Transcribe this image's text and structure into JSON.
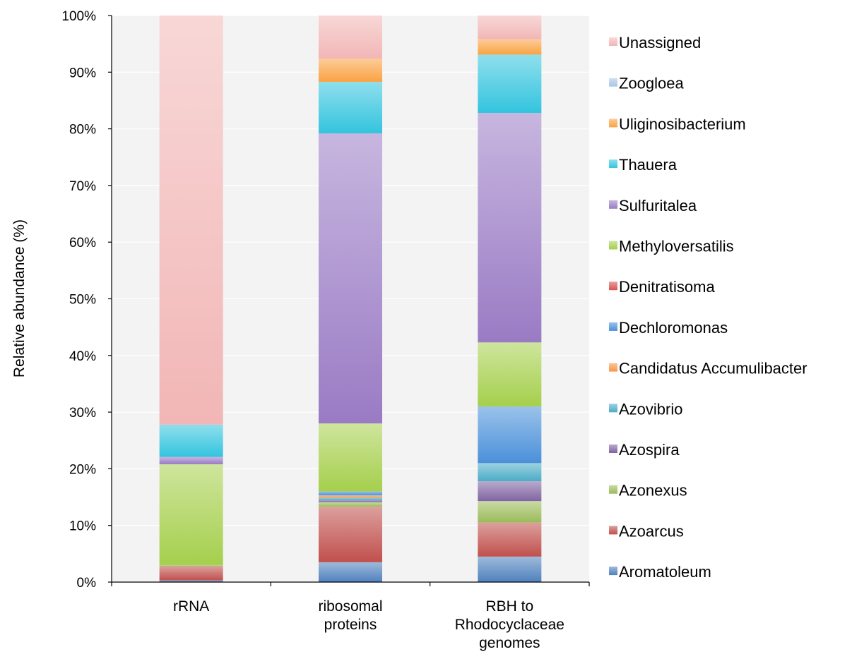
{
  "chart_data": {
    "type": "bar",
    "stacked": true,
    "title": "",
    "xlabel": "",
    "ylabel": "Relative abundance (%)",
    "ylim": [
      0,
      100
    ],
    "yticks": [
      "0%",
      "10%",
      "20%",
      "30%",
      "40%",
      "50%",
      "60%",
      "70%",
      "80%",
      "90%",
      "100%"
    ],
    "grid": true,
    "legend_position": "right",
    "categories": [
      [
        "rRNA"
      ],
      [
        "ribosomal",
        "proteins"
      ],
      [
        "RBH to",
        "Rhodocyclaceae",
        "genomes"
      ]
    ],
    "series": [
      {
        "name": "Aromatoleum",
        "color": "#4f81bd",
        "values": [
          0.3,
          3.5,
          4.5
        ]
      },
      {
        "name": "Azoarcus",
        "color": "#c0504d",
        "values": [
          2.5,
          9.8,
          6.0
        ]
      },
      {
        "name": "Azonexus",
        "color": "#9bbb59",
        "values": [
          0.2,
          0.8,
          3.8
        ]
      },
      {
        "name": "Azospira",
        "color": "#8064a2",
        "values": [
          0.0,
          0.4,
          3.5
        ]
      },
      {
        "name": "Azovibrio",
        "color": "#4bacc6",
        "values": [
          0.0,
          0.4,
          3.2
        ]
      },
      {
        "name": "Candidatus Accumulibacter",
        "color": "#f79646",
        "values": [
          0.0,
          0.4,
          0.0
        ]
      },
      {
        "name": "Dechloromonas",
        "color": "#4a90d9",
        "values": [
          0.0,
          0.7,
          10.0
        ]
      },
      {
        "name": "Denitratisoma",
        "color": "#d9534f",
        "values": [
          0.0,
          0.0,
          0.0
        ]
      },
      {
        "name": "Methyloversatilis",
        "color": "#a5cf4c",
        "values": [
          17.8,
          12.0,
          11.3
        ]
      },
      {
        "name": "Sulfuritalea",
        "color": "#9a7bc4",
        "values": [
          1.3,
          51.2,
          40.5
        ]
      },
      {
        "name": "Thauera",
        "color": "#33c4de",
        "values": [
          5.7,
          9.1,
          10.3
        ]
      },
      {
        "name": "Uliginosibacterium",
        "color": "#f9a343",
        "values": [
          0.0,
          4.1,
          2.7
        ]
      },
      {
        "name": "Zoogloea",
        "color": "#a7c7e7",
        "values": [
          0.0,
          0.0,
          0.0
        ]
      },
      {
        "name": "Unassigned",
        "color": "#f2b6b6",
        "values": [
          72.2,
          7.6,
          4.2
        ]
      }
    ]
  }
}
